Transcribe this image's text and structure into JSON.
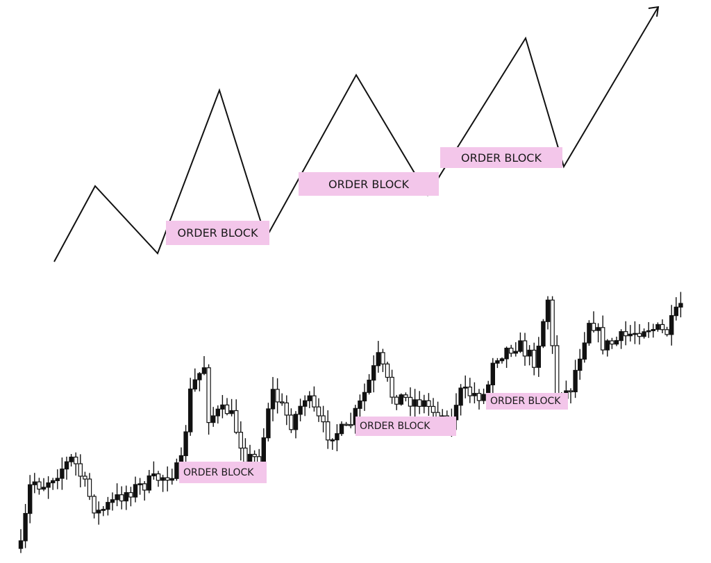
{
  "colors": {
    "order_block": "#f3c6ea",
    "line": "#111111",
    "candle_up": "#111111",
    "candle_down": "#ffffff"
  },
  "schematic": {
    "type": "zigzag market-structure line with arrow",
    "order_blocks": [
      {
        "label": "ORDER BLOCK"
      },
      {
        "label": "ORDER BLOCK"
      },
      {
        "label": "ORDER BLOCK"
      }
    ]
  },
  "candles": {
    "type": "candlestick uptrend",
    "order_blocks": [
      {
        "label": "ORDER BLOCK"
      },
      {
        "label": "ORDER BLOCK"
      },
      {
        "label": "ORDER BLOCK"
      }
    ]
  }
}
